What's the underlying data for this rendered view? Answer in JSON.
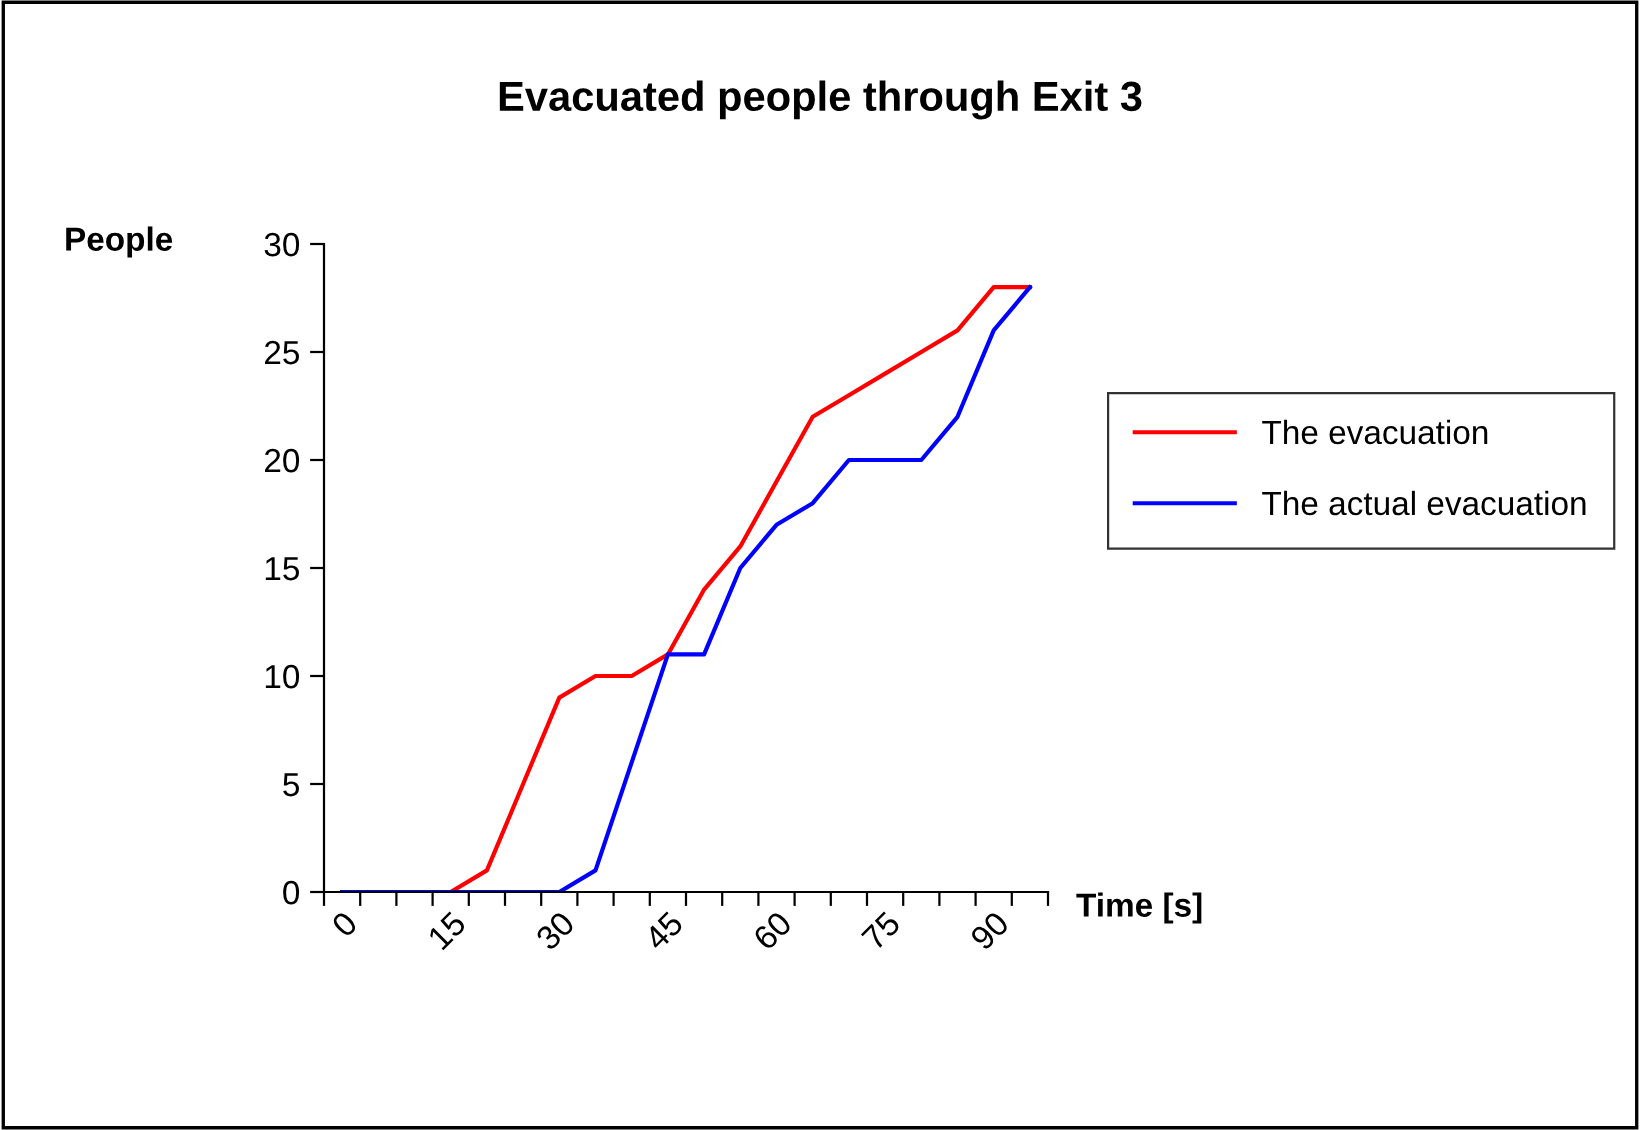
{
  "chart_data": {
    "type": "line",
    "title": "Evacuated people through Exit 3",
    "xlabel": "Time [s]",
    "ylabel": "People",
    "categories": [
      "0",
      null,
      null,
      "15",
      null,
      null,
      "30",
      null,
      null,
      "45",
      null,
      null,
      "60",
      null,
      null,
      "75",
      null,
      null,
      "90",
      null
    ],
    "series": [
      {
        "name": "The evacuation",
        "color": "#ff0000",
        "values": [
          null,
          null,
          0,
          0,
          1,
          5,
          9,
          10,
          10,
          11,
          14,
          16,
          19,
          22,
          23,
          24,
          25,
          26,
          28,
          28
        ]
      },
      {
        "name": "The actual evacuation",
        "color": "#0000ff",
        "values": [
          0,
          0,
          0,
          0,
          0,
          0,
          0,
          1,
          6,
          11,
          11,
          15,
          17,
          18,
          20,
          20,
          20,
          22,
          26,
          28
        ]
      }
    ],
    "ylim": [
      0,
      30
    ],
    "yticks": [
      0,
      5,
      10,
      15,
      20,
      25,
      30
    ],
    "grid": false,
    "legend": "right",
    "marker": "none",
    "line_style": "solid"
  }
}
